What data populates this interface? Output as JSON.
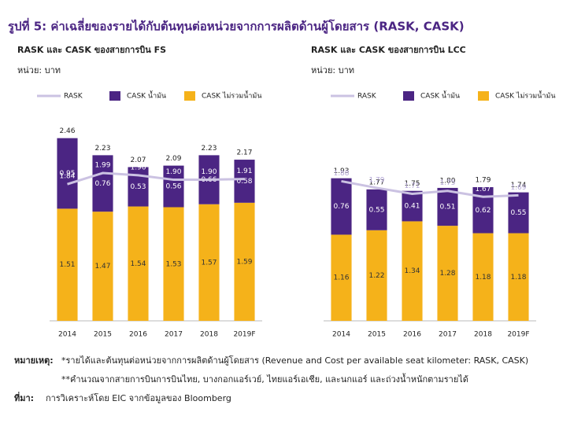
{
  "figure_title": "รูปที่ 5: ค่าเฉลี่ยของรายได้กับต้นทุนต่อหน่วยจากการผลิตด้านผู้โดยสาร (RASK, CASK)",
  "chart_data": [
    {
      "type": "bar",
      "title": "RASK และ CASK ของสายการบิน FS",
      "unit": "หน่วย: บาท",
      "categories": [
        "2014",
        "2015",
        "2016",
        "2017",
        "2018",
        "2019F"
      ],
      "ylim": [
        0,
        2.7
      ],
      "series": [
        {
          "name": "RASK",
          "kind": "line",
          "color": "#cbc2e2",
          "values": [
            1.84,
            1.99,
            1.96,
            1.9,
            1.9,
            1.91
          ],
          "value_labels": [
            "1.84",
            "1.99",
            "1.96",
            "1.90",
            "1.90",
            "1.91"
          ]
        },
        {
          "name": "CASK น้ำมัน",
          "kind": "bar",
          "color": "#4b2583",
          "values": [
            0.95,
            0.76,
            0.53,
            0.56,
            0.66,
            0.58
          ],
          "value_labels": [
            "0.95",
            "0.76",
            "0.53",
            "0.56",
            "0.66",
            "0.58"
          ]
        },
        {
          "name": "CASK ไม่รวมน้ำมัน",
          "kind": "bar",
          "color": "#f5b21a",
          "values": [
            1.51,
            1.47,
            1.54,
            1.53,
            1.57,
            1.59
          ]
        }
      ],
      "total_labels": [
        2.46,
        2.23,
        2.07,
        2.09,
        2.23,
        2.17
      ]
    },
    {
      "type": "bar",
      "title": "RASK และ CASK ของสายการบิน LCC",
      "unit": "หน่วย: บาท",
      "categories": [
        "2014",
        "2015",
        "2016",
        "2017",
        "2018",
        "2019F"
      ],
      "ylim": [
        0,
        2.7
      ],
      "series": [
        {
          "name": "RASK",
          "kind": "line",
          "color": "#cbc2e2",
          "values": [
            1.88,
            1.79,
            1.71,
            1.75,
            1.67,
            1.69
          ]
        },
        {
          "name": "CASK น้ำมัน",
          "kind": "bar",
          "color": "#4b2583",
          "values": [
            0.76,
            0.55,
            0.41,
            0.51,
            0.62,
            0.55
          ]
        },
        {
          "name": "CASK ไม่รวมน้ำมัน",
          "kind": "bar",
          "color": "#f5b21a",
          "values": [
            1.16,
            1.22,
            1.34,
            1.28,
            1.18,
            1.18
          ]
        }
      ],
      "total_labels": [
        1.93,
        1.77,
        1.75,
        1.8,
        1.79,
        1.74
      ]
    }
  ],
  "notes": {
    "label": "หมายเหตุ:",
    "lines": [
      "*รายได้และต้นทุนต่อหน่วยจากการผลิตด้านผู้โดยสาร (Revenue and Cost per available seat kilometer: RASK, CASK)",
      "**คำนวณจากสายการบินการบินไทย, บางกอกแอร์เวย์, ไทยแอร์เอเชีย, และนกแอร์ และถ่วงน้ำหนักตามรายได้"
    ],
    "source_label": "ที่มา:",
    "source": "การวิเคราะห์โดย EIC จากข้อมูลของ Bloomberg"
  }
}
